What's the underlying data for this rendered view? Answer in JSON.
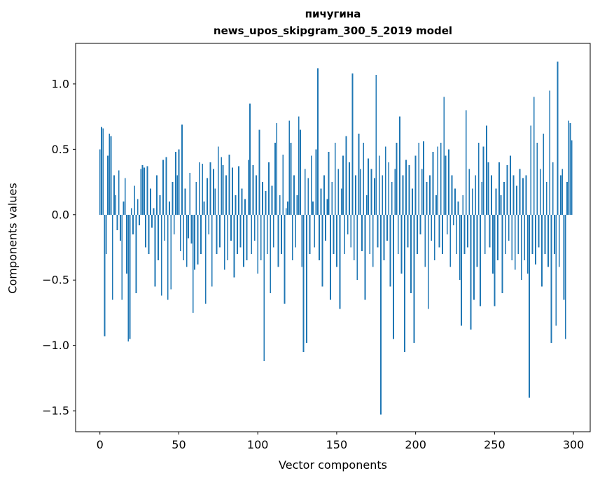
{
  "chart_data": {
    "type": "bar",
    "title_line1": "пичугина",
    "title_line2": "news_upos_skipgram_300_5_2019 model",
    "xlabel": "Vector components",
    "ylabel": "Components values",
    "xlim": [
      -15.4,
      310.6
    ],
    "ylim": [
      -1.66,
      1.31
    ],
    "xticks": [
      0,
      50,
      100,
      150,
      200,
      250,
      300
    ],
    "yticks": [
      -1.5,
      -1.0,
      -0.5,
      0.0,
      0.5,
      1.0
    ],
    "grid": false,
    "legend": "none",
    "bar_color": "#1f77b4",
    "bar_width": 0.8,
    "x_start": 0,
    "values": [
      0.5,
      0.67,
      0.66,
      -0.93,
      -0.3,
      0.45,
      0.62,
      0.6,
      -0.65,
      0.3,
      0.15,
      -0.12,
      0.34,
      -0.2,
      -0.65,
      0.1,
      0.28,
      -0.45,
      -0.97,
      -0.95,
      0.05,
      -0.15,
      0.22,
      -0.6,
      0.12,
      -0.08,
      0.35,
      0.38,
      0.36,
      -0.25,
      0.37,
      -0.3,
      0.2,
      -0.1,
      0.05,
      -0.55,
      0.3,
      -0.35,
      0.15,
      -0.62,
      0.42,
      -0.2,
      0.44,
      -0.65,
      0.1,
      -0.57,
      0.25,
      -0.15,
      0.48,
      0.3,
      0.5,
      -0.28,
      0.69,
      -0.35,
      0.2,
      -0.4,
      -0.18,
      0.32,
      -0.22,
      -0.75,
      -0.42,
      0.25,
      -0.38,
      0.4,
      -0.3,
      0.39,
      0.1,
      -0.68,
      0.28,
      -0.15,
      0.4,
      -0.55,
      0.35,
      0.2,
      -0.3,
      0.52,
      -0.25,
      0.44,
      0.38,
      -0.42,
      0.3,
      -0.35,
      0.46,
      -0.2,
      0.36,
      -0.48,
      0.15,
      -0.3,
      0.37,
      -0.25,
      0.2,
      -0.4,
      0.12,
      -0.35,
      0.42,
      0.85,
      -0.3,
      0.38,
      -0.2,
      0.3,
      -0.45,
      0.65,
      -0.35,
      0.25,
      -1.12,
      0.18,
      -0.3,
      0.4,
      -0.6,
      0.22,
      -0.25,
      0.55,
      0.7,
      -0.4,
      0.15,
      -0.3,
      0.46,
      -0.68,
      0.05,
      0.1,
      0.72,
      0.55,
      -0.35,
      0.3,
      -0.25,
      0.15,
      0.75,
      0.65,
      -0.4,
      -1.05,
      0.35,
      -0.98,
      0.28,
      -0.3,
      0.45,
      0.1,
      -0.25,
      0.5,
      1.12,
      -0.35,
      0.2,
      -0.55,
      0.3,
      -0.2,
      0.12,
      0.48,
      -0.65,
      0.25,
      -0.3,
      0.55,
      -0.4,
      0.35,
      -0.72,
      0.2,
      0.45,
      -0.3,
      0.6,
      -0.15,
      0.4,
      -0.25,
      1.08,
      -0.35,
      0.3,
      -0.5,
      0.62,
      0.35,
      -0.28,
      0.55,
      -0.65,
      0.15,
      0.43,
      -0.3,
      0.35,
      -0.4,
      0.28,
      1.07,
      -0.25,
      0.45,
      -1.53,
      0.3,
      -0.35,
      0.52,
      -0.2,
      0.4,
      -0.55,
      0.25,
      -0.95,
      0.35,
      0.55,
      -0.3,
      0.75,
      -0.45,
      0.3,
      -1.05,
      0.42,
      -0.25,
      0.38,
      -0.6,
      0.2,
      -0.98,
      0.45,
      -0.3,
      0.55,
      -0.15,
      0.35,
      0.56,
      -0.4,
      0.25,
      -0.72,
      0.3,
      -0.2,
      0.48,
      -0.35,
      0.15,
      0.52,
      -0.25,
      0.55,
      -0.3,
      0.9,
      0.45,
      -0.15,
      0.5,
      -0.4,
      0.3,
      -0.08,
      0.2,
      -0.3,
      0.1,
      -0.5,
      -0.85,
      0.15,
      -0.3,
      0.8,
      -0.25,
      0.35,
      -0.88,
      0.2,
      -0.65,
      0.3,
      -0.4,
      0.55,
      -0.7,
      0.25,
      0.52,
      -0.3,
      0.68,
      0.4,
      -0.25,
      0.3,
      -0.45,
      -0.7,
      0.2,
      -0.35,
      0.4,
      0.15,
      -0.6,
      0.25,
      -0.3,
      0.38,
      -0.2,
      0.45,
      -0.35,
      0.3,
      -0.42,
      0.22,
      -0.3,
      0.35,
      -0.5,
      0.28,
      -0.35,
      0.3,
      -0.45,
      -1.4,
      0.68,
      -0.3,
      0.9,
      -0.38,
      0.55,
      -0.25,
      0.35,
      -0.55,
      0.62,
      -0.3,
      0.25,
      -0.4,
      0.95,
      -0.98,
      0.4,
      -0.3,
      -0.85,
      1.17,
      -0.4,
      0.3,
      0.35,
      -0.65,
      -0.95,
      0.25,
      0.72,
      0.7,
      0.57
    ]
  }
}
